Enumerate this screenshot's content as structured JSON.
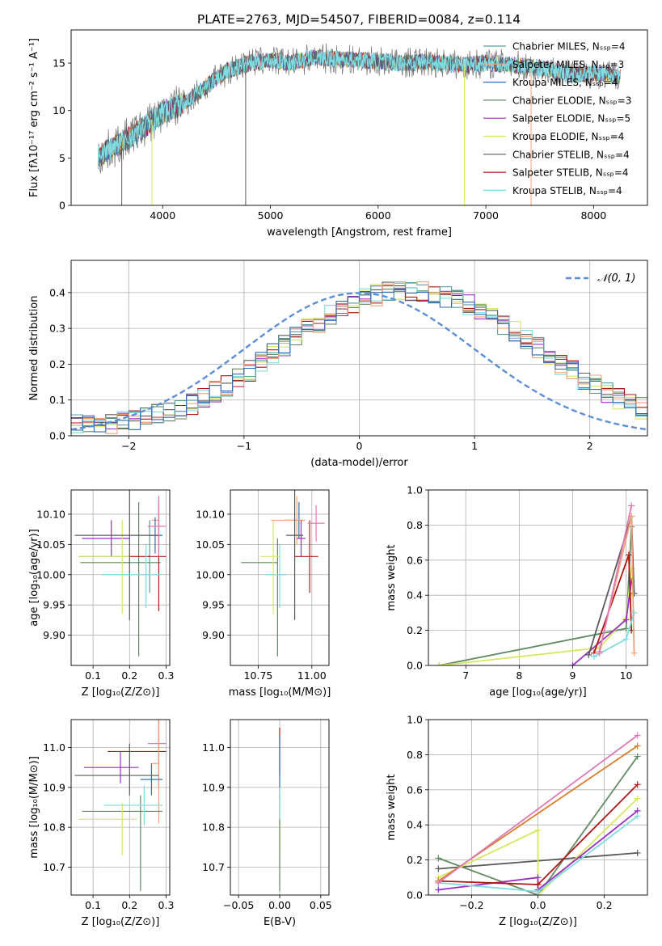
{
  "figure_title": "PLATE=2763, MJD=54507, FIBERID=0084, z=0.114",
  "colors": {
    "grid": "#b0b0b0",
    "series": [
      "#5b9ea0",
      "#f2a27a",
      "#2f6db5",
      "#5f8a62",
      "#9b30c4",
      "#d7e65f",
      "#5a5a5a",
      "#b01616",
      "#7fdde2"
    ],
    "extra_mass_weight": [
      "#e07ab5",
      "#d87d2a",
      "#4a7e5a"
    ],
    "normal": "#5b8ed6"
  },
  "chart_data": [
    {
      "id": "spectrum",
      "type": "line",
      "xlabel": "wavelength [Angstrom, rest frame]",
      "ylabel": "Flux [fλ10⁻¹⁷ erg cm⁻² s⁻¹ A⁻¹]",
      "xlim": [
        3150,
        8500
      ],
      "ylim": [
        0,
        18.5
      ],
      "xticks": [
        "4000",
        "5000",
        "6000",
        "7000",
        "8000"
      ],
      "yticks": [
        "0",
        "5",
        "10",
        "15"
      ],
      "legend": [
        "Chabrier MILES, Nₛₛₚ=4",
        "Salpeter MILES, Nₛₛₚ=3",
        "Kroupa MILES, Nₛₛₚ=4",
        "Chabrier ELODIE, Nₛₛₚ=3",
        "Salpeter ELODIE, Nₛₛₚ=5",
        "Kroupa ELODIE, Nₛₛₚ=4",
        "Chabrier STELIB, Nₛₛₚ=4",
        "Salpeter STELIB, Nₛₛₚ=4",
        "Kroupa STELIB, Nₛₛₚ=4"
      ],
      "legend_position": "right",
      "continuum": [
        [
          3400,
          5.2
        ],
        [
          3600,
          6.5
        ],
        [
          3800,
          8.0
        ],
        [
          4000,
          9.8
        ],
        [
          4200,
          10.8
        ],
        [
          4400,
          12.5
        ],
        [
          4600,
          14.2
        ],
        [
          4800,
          15.0
        ],
        [
          5000,
          15.3
        ],
        [
          5200,
          15.0
        ],
        [
          5400,
          15.6
        ],
        [
          5600,
          15.4
        ],
        [
          5800,
          15.3
        ],
        [
          6000,
          15.2
        ],
        [
          6200,
          15.0
        ],
        [
          6400,
          15.1
        ],
        [
          6600,
          15.0
        ],
        [
          6800,
          14.8
        ],
        [
          7000,
          15.0
        ],
        [
          7200,
          14.9
        ],
        [
          7400,
          14.6
        ],
        [
          7600,
          14.3
        ],
        [
          7800,
          13.8
        ],
        [
          8000,
          13.9
        ],
        [
          8200,
          13.7
        ],
        [
          8250,
          13.5
        ]
      ],
      "spikes": [
        {
          "x": 3620,
          "y": 0,
          "color_index": 6
        },
        {
          "x": 3900,
          "y": 0,
          "color_index": 5
        },
        {
          "x": 4770,
          "y": 0,
          "color_index": 6
        },
        {
          "x": 6800,
          "y": 0,
          "color_index": 5
        },
        {
          "x": 7420,
          "y": 0,
          "color_index": 1
        }
      ]
    },
    {
      "id": "residuals",
      "type": "histogram",
      "xlabel": "(data-model)/error",
      "ylabel": "Normed distribution",
      "xlim": [
        -2.5,
        2.5
      ],
      "ylim": [
        0,
        0.49
      ],
      "xticks": [
        "−2",
        "−1",
        "0",
        "1",
        "2"
      ],
      "yticks": [
        "0.0",
        "0.1",
        "0.2",
        "0.3",
        "0.4"
      ],
      "legend": [
        "𝒩(0, 1)"
      ],
      "legend_position": "top-right",
      "bin_width": 0.1,
      "mean_profile": [
        0.03,
        0.03,
        0.032,
        0.034,
        0.038,
        0.043,
        0.05,
        0.058,
        0.066,
        0.076,
        0.089,
        0.105,
        0.123,
        0.14,
        0.16,
        0.182,
        0.205,
        0.228,
        0.252,
        0.275,
        0.298,
        0.318,
        0.338,
        0.355,
        0.37,
        0.383,
        0.393,
        0.4,
        0.405,
        0.403,
        0.4,
        0.396,
        0.388,
        0.378,
        0.365,
        0.35,
        0.332,
        0.312,
        0.29,
        0.268,
        0.246,
        0.224,
        0.201,
        0.18,
        0.16,
        0.14,
        0.122,
        0.105,
        0.09,
        0.077
      ]
    },
    {
      "id": "age_vs_z",
      "type": "errorbar",
      "xlabel": "Z [log₁₀(Z/Z⊙)]",
      "ylabel": "age  [log₁₀(age/yr)]",
      "xlim": [
        0.04,
        0.31
      ],
      "ylim": [
        9.85,
        10.14
      ],
      "xticks": [
        "0.1",
        "0.2",
        "0.3"
      ],
      "yticks": [
        "9.90",
        "9.95",
        "10.00",
        "10.05",
        "10.10"
      ],
      "points": [
        {
          "x": 0.255,
          "y": 10.03,
          "xerr": [
            0.195,
            0.0
          ],
          "yerr": [
            0.06,
            0.06
          ],
          "ci": 0
        },
        {
          "x": 0.28,
          "y": 10.09,
          "xerr": [
            0.02,
            0.0
          ],
          "yerr": [
            0.04,
            0.04
          ],
          "ci": 1
        },
        {
          "x": 0.27,
          "y": 10.065,
          "xerr": [
            0.02,
            0.02
          ],
          "yerr": [
            0.03,
            0.03
          ],
          "ci": 2
        },
        {
          "x": 0.225,
          "y": 10.02,
          "xerr": [
            0.16,
            0.06
          ],
          "yerr": [
            0.155,
            0.1
          ],
          "ci": 3
        },
        {
          "x": 0.15,
          "y": 10.06,
          "xerr": [
            0.08,
            0.05
          ],
          "yerr": [
            0.03,
            0.03
          ],
          "ci": 4
        },
        {
          "x": 0.18,
          "y": 10.03,
          "xerr": [
            0.12,
            0.07
          ],
          "yerr": [
            0.095,
            0.06
          ],
          "ci": 5
        },
        {
          "x": 0.2,
          "y": 10.065,
          "xerr": [
            0.15,
            0.08
          ],
          "yerr": [
            0.14,
            0.09
          ],
          "ci": 6
        },
        {
          "x": 0.28,
          "y": 10.03,
          "xerr": [
            0.08,
            0.02
          ],
          "yerr": [
            0.09,
            0.09
          ],
          "ci": 7
        },
        {
          "x": 0.245,
          "y": 10.0,
          "xerr": [
            0.12,
            0.04
          ],
          "yerr": [
            0.055,
            0.05
          ],
          "ci": 8
        },
        {
          "x": 0.28,
          "y": 10.08,
          "xerr": [
            0.03,
            0.02
          ],
          "yerr": [
            0.05,
            0.05
          ],
          "ci": 9
        }
      ]
    },
    {
      "id": "age_vs_mass",
      "type": "errorbar",
      "xlabel": "mass [log₁₀(M/M⊙)]",
      "xlim": [
        10.62,
        11.08
      ],
      "ylim": [
        9.85,
        10.14
      ],
      "xticks": [
        "10.75",
        "11.00"
      ],
      "yticks": [
        "9.90",
        "9.95",
        "10.00",
        "10.05",
        "10.10"
      ],
      "points": [
        {
          "x": 10.94,
          "y": 10.09,
          "xerr": [
            0.07,
            0.02
          ],
          "yerr": [
            0.03,
            0.03
          ],
          "ci": 2
        },
        {
          "x": 10.93,
          "y": 10.09,
          "xerr": [
            0.12,
            0.04
          ],
          "yerr": [
            0.04,
            0.04
          ],
          "ci": 1
        },
        {
          "x": 10.84,
          "y": 10.02,
          "xerr": [
            0.17,
            0.0
          ],
          "yerr": [
            0.155,
            0.04
          ],
          "ci": 3
        },
        {
          "x": 10.95,
          "y": 10.06,
          "xerr": [
            0.02,
            0.02
          ],
          "yerr": [
            0.03,
            0.03
          ],
          "ci": 4
        },
        {
          "x": 10.82,
          "y": 10.03,
          "xerr": [
            0.06,
            0.03
          ],
          "yerr": [
            0.095,
            0.06
          ],
          "ci": 5
        },
        {
          "x": 10.92,
          "y": 10.065,
          "xerr": [
            0.04,
            0.04
          ],
          "yerr": [
            0.14,
            0.09
          ],
          "ci": 6
        },
        {
          "x": 10.99,
          "y": 10.03,
          "xerr": [
            0.07,
            0.04
          ],
          "yerr": [
            0.06,
            0.06
          ],
          "ci": 7
        },
        {
          "x": 10.85,
          "y": 10.0,
          "xerr": [
            0.07,
            0.03
          ],
          "yerr": [
            0.055,
            0.05
          ],
          "ci": 8
        },
        {
          "x": 11.02,
          "y": 10.085,
          "xerr": [
            0.04,
            0.04
          ],
          "yerr": [
            0.03,
            0.03
          ],
          "ci": 9
        }
      ]
    },
    {
      "id": "massweight_vs_age",
      "type": "line",
      "xlabel": "age  [log₁₀(age/yr)]",
      "ylabel": "mass weight",
      "xlim": [
        6.3,
        10.4
      ],
      "ylim": [
        0,
        1.0
      ],
      "xticks": [
        "7",
        "8",
        "9",
        "10"
      ],
      "yticks": [
        "0.0",
        "0.2",
        "0.4",
        "0.6",
        "0.8",
        "1.0"
      ],
      "series": [
        {
          "ci": 3,
          "points": [
            [
              6.5,
              0.0
            ],
            [
              10.0,
              0.21
            ],
            [
              10.1,
              0.79
            ]
          ]
        },
        {
          "ci": 5,
          "points": [
            [
              6.5,
              0.0
            ],
            [
              9.5,
              0.1
            ],
            [
              10.0,
              0.27
            ],
            [
              10.1,
              0.55
            ]
          ]
        },
        {
          "ci": 4,
          "points": [
            [
              9.0,
              0.0
            ],
            [
              10.0,
              0.26
            ],
            [
              10.1,
              0.48
            ]
          ]
        },
        {
          "ci": 6,
          "points": [
            [
              9.3,
              0.06
            ],
            [
              10.1,
              0.85
            ],
            [
              10.15,
              0.41
            ]
          ]
        },
        {
          "ci": 7,
          "points": [
            [
              9.4,
              0.07
            ],
            [
              10.05,
              0.63
            ],
            [
              10.1,
              0.2
            ]
          ]
        },
        {
          "ci": 8,
          "points": [
            [
              9.4,
              0.05
            ],
            [
              10.0,
              0.15
            ],
            [
              10.15,
              0.3
            ]
          ]
        },
        {
          "ci": 1,
          "points": [
            [
              9.5,
              0.08
            ],
            [
              10.1,
              0.85
            ],
            [
              10.15,
              0.07
            ]
          ]
        },
        {
          "ci": 9,
          "points": [
            [
              9.5,
              0.07
            ],
            [
              10.1,
              0.91
            ]
          ]
        }
      ]
    },
    {
      "id": "mass_vs_z",
      "type": "errorbar",
      "xlabel": "Z [log₁₀(Z/Z⊙)]",
      "ylabel": "mass [log₁₀(M/M⊙)]",
      "xlim": [
        0.04,
        0.31
      ],
      "ylim": [
        10.63,
        11.07
      ],
      "xticks": [
        "0.1",
        "0.2",
        "0.3"
      ],
      "yticks": [
        "10.7",
        "10.8",
        "10.9",
        "11.0"
      ],
      "points": [
        {
          "x": 0.28,
          "y": 11.01,
          "xerr": [
            0.03,
            0.02
          ],
          "yerr": [
            0.05,
            0.05
          ],
          "ci": 9
        },
        {
          "x": 0.28,
          "y": 10.99,
          "xerr": [
            0.14,
            0.02
          ],
          "yerr": [
            0.09,
            0.09
          ],
          "ci": 7
        },
        {
          "x": 0.28,
          "y": 10.96,
          "xerr": [
            0.02,
            0.0
          ],
          "yerr": [
            0.15,
            0.15
          ],
          "ci": 1
        },
        {
          "x": 0.175,
          "y": 10.95,
          "xerr": [
            0.1,
            0.05
          ],
          "yerr": [
            0.04,
            0.04
          ],
          "ci": 4
        },
        {
          "x": 0.26,
          "y": 10.92,
          "xerr": [
            0.03,
            0.03
          ],
          "yerr": [
            0.04,
            0.04
          ],
          "ci": 2
        },
        {
          "x": 0.2,
          "y": 10.93,
          "xerr": [
            0.15,
            0.08
          ],
          "yerr": [
            0.05,
            0.08
          ],
          "ci": 6
        },
        {
          "x": 0.23,
          "y": 10.84,
          "xerr": [
            0.16,
            0.06
          ],
          "yerr": [
            0.2,
            0.04
          ],
          "ci": 3
        },
        {
          "x": 0.24,
          "y": 10.855,
          "xerr": [
            0.11,
            0.05
          ],
          "yerr": [
            0.05,
            0.05
          ],
          "ci": 8
        },
        {
          "x": 0.18,
          "y": 10.82,
          "xerr": [
            0.12,
            0.04
          ],
          "yerr": [
            0.09,
            0.04
          ],
          "ci": 5
        }
      ]
    },
    {
      "id": "mass_vs_ebv",
      "type": "errorbar",
      "xlabel": "E(B-V)",
      "xlim": [
        -0.06,
        0.06
      ],
      "ylim": [
        10.63,
        11.07
      ],
      "xticks": [
        "−0.05",
        "0.00",
        "0.05"
      ],
      "yticks": [
        "10.7",
        "10.8",
        "10.9",
        "11.0"
      ],
      "points": [
        {
          "x": 0.0,
          "y": 10.99,
          "xerr": [
            0,
            0
          ],
          "yerr": [
            0.06,
            0.06
          ],
          "ci": 7
        },
        {
          "x": 0.0,
          "y": 10.95,
          "xerr": [
            0,
            0
          ],
          "yerr": [
            0.08,
            0.08
          ],
          "ci": 2
        },
        {
          "x": 0.0,
          "y": 10.82,
          "xerr": [
            0,
            0
          ],
          "yerr": [
            0.09,
            0.05
          ],
          "ci": 5
        },
        {
          "x": 0.0,
          "y": 10.84,
          "xerr": [
            0,
            0
          ],
          "yerr": [
            0.2,
            0.04
          ],
          "ci": 3
        },
        {
          "x": 0.0,
          "y": 10.86,
          "xerr": [
            0,
            0
          ],
          "yerr": [
            0.04,
            0.04
          ],
          "ci": 8
        }
      ]
    },
    {
      "id": "massweight_vs_z",
      "type": "line",
      "xlabel": "Z [log₁₀(Z/Z⊙)]",
      "ylabel": "mass weight",
      "xlim": [
        -0.33,
        0.33
      ],
      "ylim": [
        0,
        1.0
      ],
      "xticks": [
        "−0.2",
        "0.0",
        "0.2"
      ],
      "yticks": [
        "0.0",
        "0.2",
        "0.4",
        "0.6",
        "0.8",
        "1.0"
      ],
      "series": [
        {
          "ci": 3,
          "points": [
            [
              -0.3,
              0.21
            ],
            [
              0.0,
              0.0
            ],
            [
              0.3,
              0.79
            ]
          ]
        },
        {
          "ci": 6,
          "points": [
            [
              -0.3,
              0.15
            ],
            [
              0.3,
              0.24
            ]
          ]
        },
        {
          "ci": 5,
          "points": [
            [
              -0.3,
              0.1
            ],
            [
              0.0,
              0.37
            ],
            [
              0.0,
              0.0
            ],
            [
              0.3,
              0.55
            ]
          ]
        },
        {
          "ci": 4,
          "points": [
            [
              -0.3,
              0.03
            ],
            [
              0.0,
              0.1
            ],
            [
              0.0,
              0.03
            ],
            [
              0.3,
              0.48
            ]
          ]
        },
        {
          "ci": 7,
          "points": [
            [
              -0.3,
              0.08
            ],
            [
              0.0,
              0.06
            ],
            [
              0.3,
              0.63
            ]
          ]
        },
        {
          "ci": 8,
          "points": [
            [
              -0.3,
              0.07
            ],
            [
              0.0,
              0.02
            ],
            [
              0.3,
              0.45
            ]
          ]
        },
        {
          "ci": 10,
          "points": [
            [
              -0.3,
              0.08
            ],
            [
              0.3,
              0.85
            ]
          ]
        },
        {
          "ci": 9,
          "points": [
            [
              -0.3,
              0.07
            ],
            [
              0.3,
              0.91
            ]
          ]
        }
      ]
    }
  ]
}
